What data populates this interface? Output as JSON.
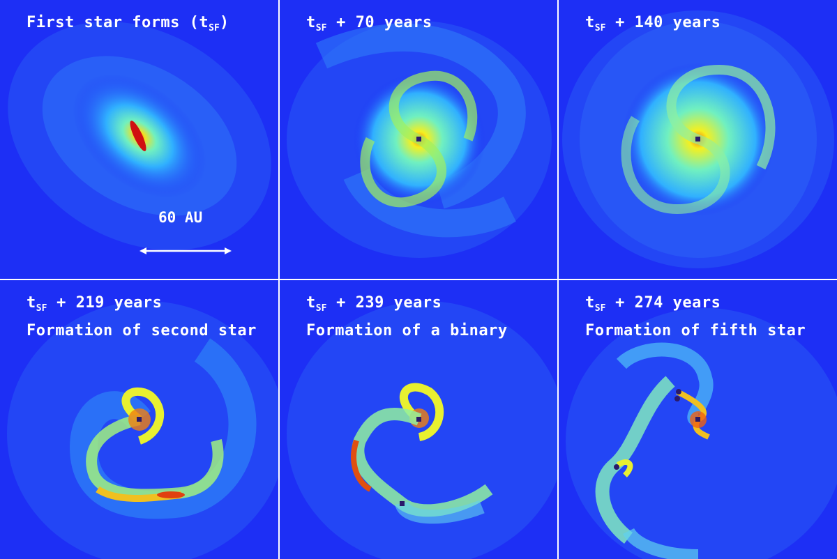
{
  "panels": [
    {
      "id": "p1",
      "time_main": "First star forms (t",
      "time_sub": "SF",
      "time_tail": ")",
      "description": ""
    },
    {
      "id": "p2",
      "time_main": "t",
      "time_sub": "SF",
      "time_tail": " + 70 years",
      "description": ""
    },
    {
      "id": "p3",
      "time_main": "t",
      "time_sub": "SF",
      "time_tail": " + 140 years",
      "description": ""
    },
    {
      "id": "p4",
      "time_main": "t",
      "time_sub": "SF",
      "time_tail": " + 219 years",
      "description": "Formation of second star"
    },
    {
      "id": "p5",
      "time_main": "t",
      "time_sub": "SF",
      "time_tail": " + 239 years",
      "description": "Formation of a binary"
    },
    {
      "id": "p6",
      "time_main": "t",
      "time_sub": "SF",
      "time_tail": " + 274 years",
      "description": "Formation of fifth star"
    }
  ],
  "scale_bar": {
    "label": "60 AU"
  },
  "colors": {
    "background": "#1d2ff5",
    "cyan": "#40e0ff",
    "yellow": "#f4f020",
    "red": "#e02010",
    "star": "#2a1a6a"
  }
}
